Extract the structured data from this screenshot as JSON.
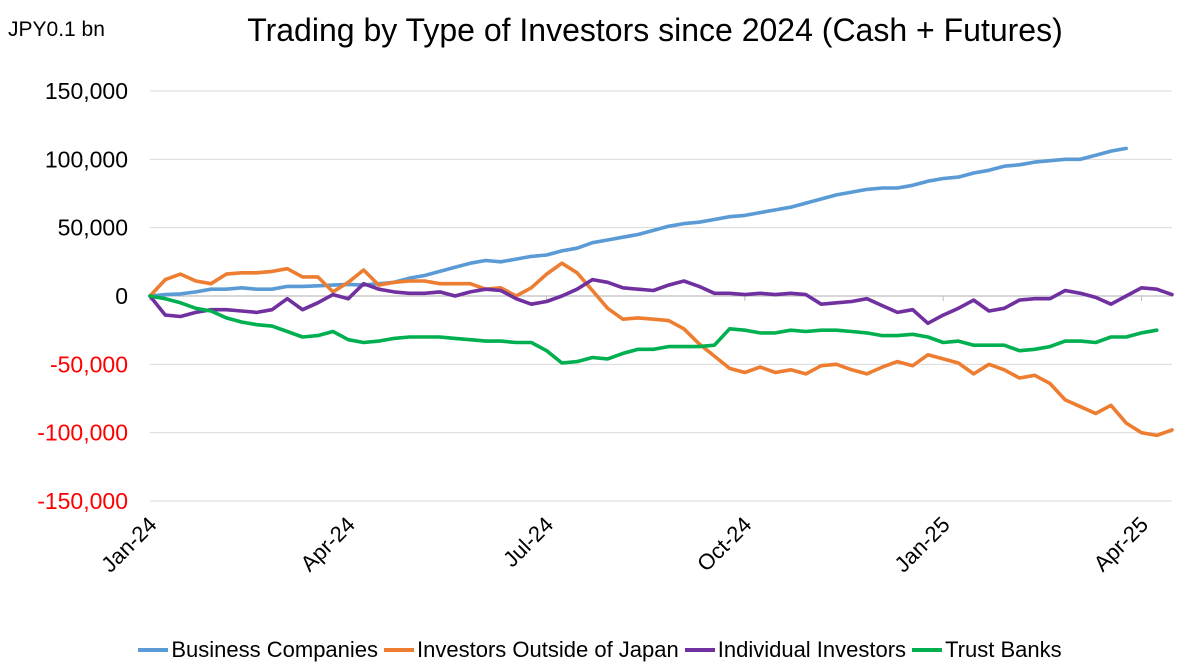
{
  "chart_data": {
    "type": "line",
    "title": "Trading by Type of Investors since 2024 (Cash + Futures)",
    "unit_label": "JPY0.1 bn",
    "ylim": [
      -150000,
      150000
    ],
    "y_ticks": [
      150000,
      100000,
      50000,
      0,
      -50000,
      -100000,
      -150000
    ],
    "y_tick_labels": [
      "150,000",
      "100,000",
      "50,000",
      "0",
      "-50,000",
      "-100,000",
      "-150,000"
    ],
    "negative_tick_color": "#ff0000",
    "x_tick_labels": [
      "Jan-24",
      "Apr-24",
      "Jul-24",
      "Oct-24",
      "Jan-25",
      "Apr-25"
    ],
    "x_tick_positions": [
      0,
      13,
      26,
      39,
      52,
      65
    ],
    "grid": true,
    "legend_position": "bottom",
    "series": [
      {
        "name": "Business Companies",
        "color": "#5b9bd5",
        "values": [
          0,
          1000,
          1500,
          3000,
          5000,
          5000,
          6000,
          5000,
          5000,
          7000,
          7000,
          7500,
          8000,
          8500,
          8000,
          9000,
          10000,
          13000,
          15000,
          18000,
          21000,
          24000,
          26000,
          25000,
          27000,
          29000,
          30000,
          33000,
          35000,
          39000,
          41000,
          43000,
          45000,
          48000,
          51000,
          53000,
          54000,
          56000,
          58000,
          59000,
          61000,
          63000,
          65000,
          68000,
          71000,
          74000,
          76000,
          78000,
          79000,
          79000,
          81000,
          84000,
          86000,
          87000,
          90000,
          92000,
          95000,
          96000,
          98000,
          99000,
          100000,
          100000,
          103000,
          106000,
          108000
        ]
      },
      {
        "name": "Investors Outside of Japan",
        "color": "#ed7d31",
        "values": [
          0,
          12000,
          16000,
          11000,
          9000,
          16000,
          17000,
          17000,
          18000,
          20000,
          14000,
          14000,
          3000,
          10000,
          19000,
          8000,
          10000,
          11000,
          11000,
          9000,
          9000,
          9000,
          5000,
          6000,
          0,
          6000,
          16000,
          24000,
          17000,
          4000,
          -9000,
          -17000,
          -16000,
          -17000,
          -18000,
          -24000,
          -35000,
          -44000,
          -53000,
          -56000,
          -52000,
          -56000,
          -54000,
          -57000,
          -51000,
          -50000,
          -54000,
          -57000,
          -52000,
          -48000,
          -51000,
          -43000,
          -46000,
          -49000,
          -57000,
          -50000,
          -54000,
          -60000,
          -58000,
          -64000,
          -76000,
          -81000,
          -86000,
          -80000,
          -93000,
          -100000,
          -102000,
          -98000
        ]
      },
      {
        "name": "Individual Investors",
        "color": "#7030a0",
        "values": [
          0,
          -14000,
          -15000,
          -12000,
          -10000,
          -10000,
          -11000,
          -12000,
          -10000,
          -2000,
          -10000,
          -5000,
          1000,
          -2000,
          9000,
          5000,
          3000,
          2000,
          2000,
          3000,
          0,
          3000,
          5000,
          4000,
          -2000,
          -6000,
          -4000,
          0,
          5000,
          12000,
          10000,
          6000,
          5000,
          4000,
          8000,
          11000,
          7000,
          2000,
          2000,
          1000,
          2000,
          1000,
          2000,
          1000,
          -6000,
          -5000,
          -4000,
          -2000,
          -7000,
          -12000,
          -10000,
          -20000,
          -14000,
          -9000,
          -3000,
          -11000,
          -9000,
          -3000,
          -2000,
          -2000,
          4000,
          2000,
          -1000,
          -6000,
          0,
          6000,
          5000,
          1000
        ]
      },
      {
        "name": "Trust Banks",
        "color": "#00b050",
        "values": [
          0,
          -2000,
          -5000,
          -9000,
          -11000,
          -16000,
          -19000,
          -21000,
          -22000,
          -26000,
          -30000,
          -29000,
          -26000,
          -32000,
          -34000,
          -33000,
          -31000,
          -30000,
          -30000,
          -30000,
          -31000,
          -32000,
          -33000,
          -33000,
          -34000,
          -34000,
          -40000,
          -49000,
          -48000,
          -45000,
          -46000,
          -42000,
          -39000,
          -39000,
          -37000,
          -37000,
          -37000,
          -36000,
          -24000,
          -25000,
          -27000,
          -27000,
          -25000,
          -26000,
          -25000,
          -25000,
          -26000,
          -27000,
          -29000,
          -29000,
          -28000,
          -30000,
          -34000,
          -33000,
          -36000,
          -36000,
          -36000,
          -40000,
          -39000,
          -37000,
          -33000,
          -33000,
          -34000,
          -30000,
          -30000,
          -27000,
          -25000
        ]
      }
    ]
  }
}
